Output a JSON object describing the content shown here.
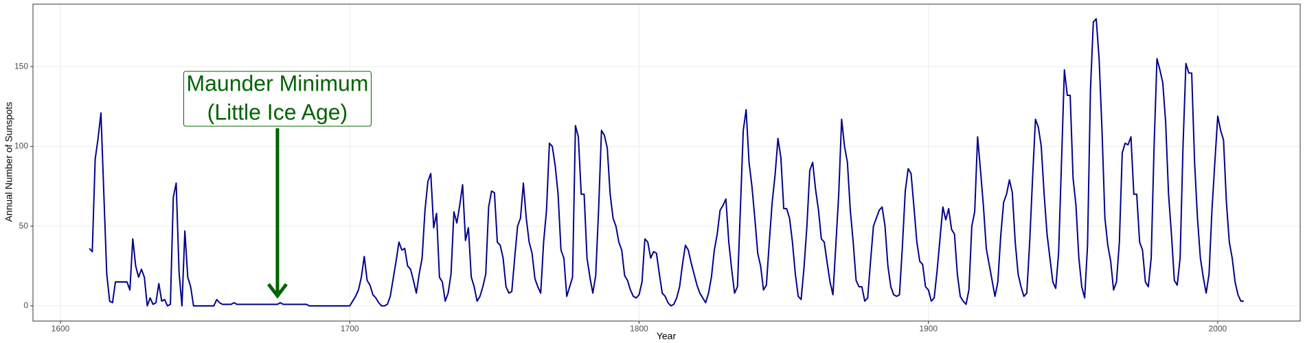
{
  "chart_data": {
    "type": "line",
    "xlabel": "Year",
    "ylabel": "Annual Number of Sunspots",
    "xlim": [
      1590.5,
      2028.5
    ],
    "ylim": [
      -9.5,
      189.2
    ],
    "xticks": [
      1600,
      1700,
      1800,
      1900,
      2000
    ],
    "yticks": [
      0,
      50,
      100,
      150
    ],
    "grid": true,
    "annotation": {
      "lines": [
        "Maunder Minimum",
        "(Little Ice Age)"
      ],
      "x": 1675,
      "y": 5,
      "color": "#006400"
    },
    "series": [
      {
        "color": "#00008b",
        "x": [
          1610,
          1611,
          1612,
          1613,
          1614,
          1615,
          1616,
          1617,
          1618,
          1619,
          1620,
          1621,
          1622,
          1623,
          1624,
          1625,
          1626,
          1627,
          1628,
          1629,
          1630,
          1631,
          1632,
          1633,
          1634,
          1635,
          1636,
          1637,
          1638,
          1639,
          1640,
          1641,
          1642,
          1643,
          1644,
          1645,
          1646,
          1647,
          1648,
          1649,
          1650,
          1651,
          1652,
          1653,
          1654,
          1655,
          1656,
          1657,
          1658,
          1659,
          1660,
          1661,
          1662,
          1663,
          1664,
          1665,
          1666,
          1667,
          1668,
          1669,
          1670,
          1671,
          1672,
          1673,
          1674,
          1675,
          1676,
          1677,
          1678,
          1679,
          1680,
          1681,
          1682,
          1683,
          1684,
          1685,
          1686,
          1687,
          1688,
          1689,
          1690,
          1691,
          1692,
          1693,
          1694,
          1695,
          1696,
          1697,
          1698,
          1699,
          1700,
          1701,
          1702,
          1703,
          1704,
          1705,
          1706,
          1707,
          1708,
          1709,
          1710,
          1711,
          1712,
          1713,
          1714,
          1715,
          1716,
          1717,
          1718,
          1719,
          1720,
          1721,
          1722,
          1723,
          1724,
          1725,
          1726,
          1727,
          1728,
          1729,
          1730,
          1731,
          1732,
          1733,
          1734,
          1735,
          1736,
          1737,
          1738,
          1739,
          1740,
          1741,
          1742,
          1743,
          1744,
          1745,
          1746,
          1747,
          1748,
          1749,
          1750,
          1751,
          1752,
          1753,
          1754,
          1755,
          1756,
          1757,
          1758,
          1759,
          1760,
          1761,
          1762,
          1763,
          1764,
          1765,
          1766,
          1767,
          1768,
          1769,
          1770,
          1771,
          1772,
          1773,
          1774,
          1775,
          1776,
          1777,
          1778,
          1779,
          1780,
          1781,
          1782,
          1783,
          1784,
          1785,
          1786,
          1787,
          1788,
          1789,
          1790,
          1791,
          1792,
          1793,
          1794,
          1795,
          1796,
          1797,
          1798,
          1799,
          1800,
          1801,
          1802,
          1803,
          1804,
          1805,
          1806,
          1807,
          1808,
          1809,
          1810,
          1811,
          1812,
          1813,
          1814,
          1815,
          1816,
          1817,
          1818,
          1819,
          1820,
          1821,
          1822,
          1823,
          1824,
          1825,
          1826,
          1827,
          1828,
          1829,
          1830,
          1831,
          1832,
          1833,
          1834,
          1835,
          1836,
          1837,
          1838,
          1839,
          1840,
          1841,
          1842,
          1843,
          1844,
          1845,
          1846,
          1847,
          1848,
          1849,
          1850,
          1851,
          1852,
          1853,
          1854,
          1855,
          1856,
          1857,
          1858,
          1859,
          1860,
          1861,
          1862,
          1863,
          1864,
          1865,
          1866,
          1867,
          1868,
          1869,
          1870,
          1871,
          1872,
          1873,
          1874,
          1875,
          1876,
          1877,
          1878,
          1879,
          1880,
          1881,
          1882,
          1883,
          1884,
          1885,
          1886,
          1887,
          1888,
          1889,
          1890,
          1891,
          1892,
          1893,
          1894,
          1895,
          1896,
          1897,
          1898,
          1899,
          1900,
          1901,
          1902,
          1903,
          1904,
          1905,
          1906,
          1907,
          1908,
          1909,
          1910,
          1911,
          1912,
          1913,
          1914,
          1915,
          1916,
          1917,
          1918,
          1919,
          1920,
          1921,
          1922,
          1923,
          1924,
          1925,
          1926,
          1927,
          1928,
          1929,
          1930,
          1931,
          1932,
          1933,
          1934,
          1935,
          1936,
          1937,
          1938,
          1939,
          1940,
          1941,
          1942,
          1943,
          1944,
          1945,
          1946,
          1947,
          1948,
          1949,
          1950,
          1951,
          1952,
          1953,
          1954,
          1955,
          1956,
          1957,
          1958,
          1959,
          1960,
          1961,
          1962,
          1963,
          1964,
          1965,
          1966,
          1967,
          1968,
          1969,
          1970,
          1971,
          1972,
          1973,
          1974,
          1975,
          1976,
          1977,
          1978,
          1979,
          1980,
          1981,
          1982,
          1983,
          1984,
          1985,
          1986,
          1987,
          1988,
          1989,
          1990,
          1991,
          1992,
          1993,
          1994,
          1995,
          1996,
          1997,
          1998,
          1999,
          2000,
          2001,
          2002,
          2003,
          2004,
          2005,
          2006,
          2007,
          2008,
          2009
        ],
        "values": [
          36,
          34,
          92,
          105,
          121,
          70,
          20,
          3,
          2,
          15,
          15,
          15,
          15,
          15,
          10,
          42,
          25,
          18,
          23,
          18,
          0,
          5,
          1,
          2,
          14,
          3,
          4,
          0,
          1,
          68,
          77,
          21,
          0,
          47,
          18,
          12,
          0,
          0,
          0,
          0,
          0,
          0,
          0,
          0,
          4,
          2,
          1,
          1,
          1,
          1,
          2,
          1,
          1,
          1,
          1,
          1,
          1,
          1,
          1,
          1,
          1,
          1,
          1,
          1,
          1,
          1,
          2,
          1,
          1,
          1,
          1,
          1,
          1,
          1,
          1,
          1,
          0,
          0,
          0,
          0,
          0,
          0,
          0,
          0,
          0,
          0,
          0,
          0,
          0,
          0,
          0,
          3,
          6,
          10,
          18,
          31,
          16,
          13,
          7,
          5,
          2,
          0,
          0,
          1,
          6,
          17,
          28,
          40,
          35,
          36,
          25,
          23,
          16,
          8,
          20,
          30,
          60,
          78,
          83,
          49,
          58,
          18,
          15,
          3,
          8,
          20,
          59,
          52,
          63,
          76,
          41,
          49,
          18,
          12,
          3,
          6,
          12,
          20,
          62,
          72,
          71,
          40,
          38,
          30,
          12,
          8,
          9,
          30,
          50,
          55,
          77,
          55,
          40,
          33,
          17,
          12,
          8,
          40,
          60,
          102,
          100,
          88,
          70,
          35,
          30,
          6,
          12,
          18,
          113,
          106,
          70,
          70,
          30,
          18,
          8,
          19,
          60,
          110,
          107,
          99,
          70,
          55,
          50,
          40,
          35,
          19,
          16,
          10,
          6,
          5,
          7,
          15,
          42,
          40,
          30,
          34,
          33,
          20,
          8,
          6,
          2,
          0,
          1,
          5,
          12,
          26,
          38,
          35,
          27,
          20,
          13,
          8,
          5,
          2,
          8,
          18,
          35,
          45,
          60,
          63,
          67,
          40,
          23,
          8,
          12,
          60,
          110,
          123,
          90,
          75,
          55,
          33,
          25,
          10,
          13,
          40,
          65,
          82,
          105,
          93,
          61,
          61,
          55,
          40,
          20,
          6,
          4,
          24,
          50,
          85,
          90,
          73,
          60,
          42,
          40,
          27,
          15,
          7,
          38,
          70,
          117,
          100,
          90,
          60,
          40,
          16,
          12,
          12,
          3,
          5,
          28,
          50,
          55,
          60,
          62,
          50,
          25,
          12,
          7,
          6,
          7,
          37,
          72,
          86,
          83,
          62,
          40,
          28,
          26,
          12,
          10,
          3,
          5,
          22,
          42,
          62,
          54,
          61,
          48,
          45,
          20,
          6,
          3,
          1,
          10,
          50,
          59,
          106,
          85,
          63,
          36,
          26,
          16,
          6,
          15,
          44,
          65,
          70,
          79,
          71,
          40,
          20,
          12,
          6,
          8,
          40,
          80,
          117,
          112,
          100,
          70,
          45,
          30,
          15,
          11,
          33,
          90,
          148,
          132,
          132,
          80,
          63,
          30,
          12,
          5,
          38,
          135,
          178,
          180,
          155,
          110,
          55,
          38,
          28,
          10,
          15,
          40,
          96,
          102,
          101,
          106,
          70,
          70,
          40,
          35,
          15,
          12,
          30,
          100,
          155,
          148,
          140,
          115,
          70,
          45,
          16,
          13,
          30,
          100,
          152,
          146,
          146,
          90,
          55,
          30,
          18,
          8,
          20,
          60,
          90,
          119,
          110,
          104,
          65,
          40,
          30,
          15,
          7,
          3,
          3
        ]
      }
    ]
  }
}
